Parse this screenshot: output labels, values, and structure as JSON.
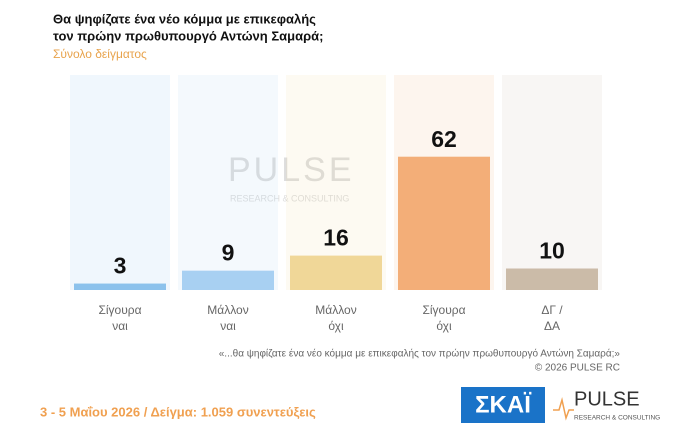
{
  "chart_data": {
    "type": "bar",
    "title": [
      "Θα ψηφίζατε ένα νέο κόμμα με επικεφαλής",
      "τον πρώην πρωθυπουργό Αντώνη Σαμαρά;"
    ],
    "subtitle": "Σύνολο δείγματος",
    "categories": [
      [
        "Σίγουρα",
        "ναι"
      ],
      [
        "Μάλλον",
        "ναι"
      ],
      [
        "Μάλλον",
        "όχι"
      ],
      [
        "Σίγουρα",
        "όχι"
      ],
      [
        "ΔΓ /",
        "ΔΑ"
      ]
    ],
    "values": [
      3,
      9,
      16,
      62,
      10
    ],
    "colors": [
      "#8cc2ec",
      "#a8d0f2",
      "#f0d798",
      "#f3ae78",
      "#cbbba8"
    ],
    "ylim": [
      0,
      100
    ],
    "watermark": {
      "name": "PULSE",
      "tagline": "RESEARCH & CONSULTING"
    },
    "note": "«...θα ψηφίζατε ένα νέο κόμμα με επικεφαλής τον πρώην πρωθυπουργό Αντώνη Σαμαρά;»",
    "copyright": "©  2026  PULSE RC",
    "footer": "3 - 5  Μαΐου 2026  /  Δείγμα:  1.059 συνεντεύξεις",
    "logos": {
      "broadcaster": "ΣΚΑΪ",
      "pollster": "PULSE",
      "pollster_tagline": "RESEARCH & CONSULTING"
    }
  }
}
